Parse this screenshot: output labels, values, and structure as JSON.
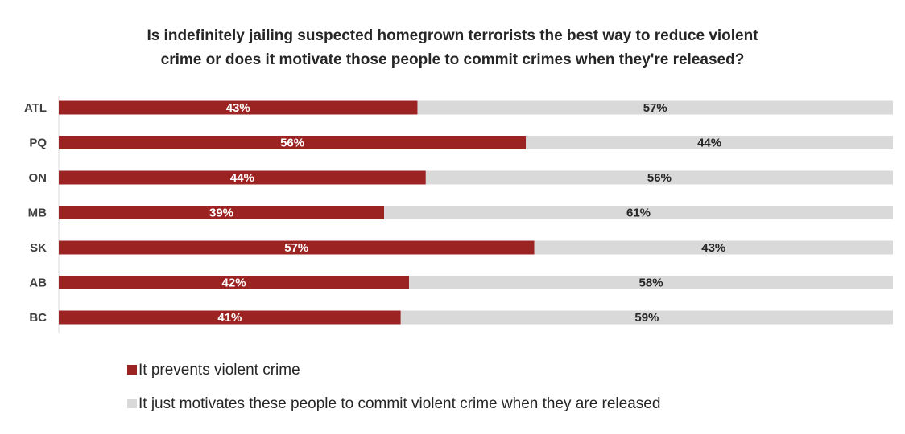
{
  "chart_data": {
    "type": "bar",
    "orientation": "horizontal",
    "stacked": true,
    "title_lines": [
      "Is indefinitely jailing suspected homegrown terrorists the best way to reduce violent",
      "crime or does it motivate those people to commit crimes when they're released?"
    ],
    "categories": [
      "ATL",
      "PQ",
      "ON",
      "MB",
      "SK",
      "AB",
      "BC"
    ],
    "series": [
      {
        "name": "It prevents violent crime",
        "values": [
          43,
          56,
          44,
          39,
          57,
          42,
          41
        ],
        "labels": [
          "43%",
          "56%",
          "44%",
          "39%",
          "57%",
          "42%",
          "41%"
        ],
        "color": "#9b2423"
      },
      {
        "name": "It just motivates these people to commit violent crime when they are released",
        "values": [
          57,
          44,
          56,
          61,
          43,
          58,
          59
        ],
        "labels": [
          "57%",
          "44%",
          "56%",
          "61%",
          "43%",
          "58%",
          "59%"
        ],
        "color": "#d9d9d9"
      }
    ],
    "xlim": [
      0,
      100
    ],
    "grid": false,
    "legend_position": "bottom-left"
  }
}
